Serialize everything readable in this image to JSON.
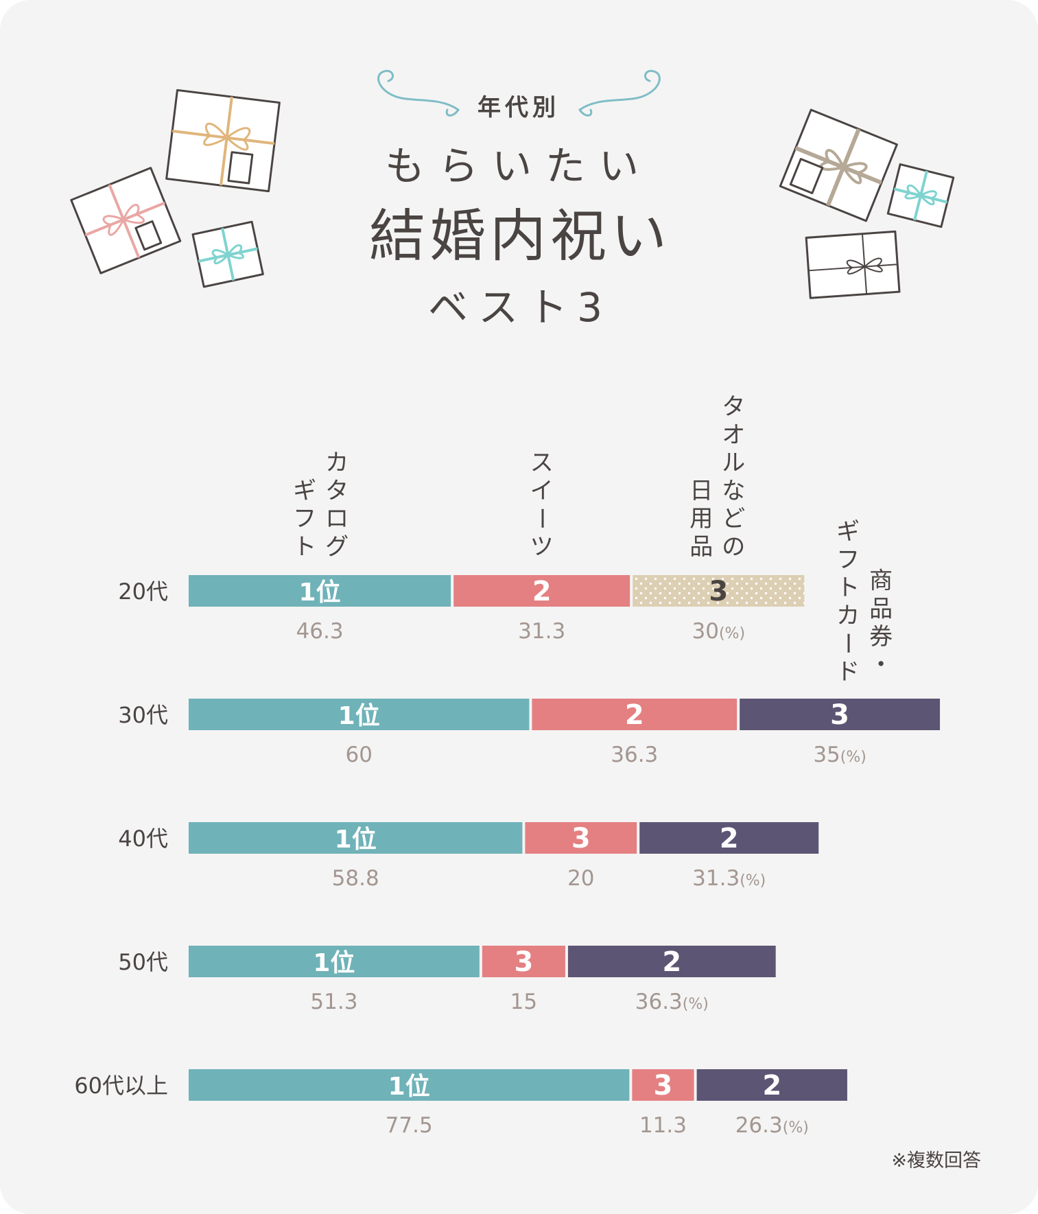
{
  "header": {
    "tag": "年代別",
    "line1": "もらいたい",
    "line2": "結婚内祝い",
    "line3": "ベスト3"
  },
  "colors": {
    "catalog": "#6fb2b8",
    "sweets": "#e48082",
    "towel": "#dccfb3",
    "giftcard": "#5d5574",
    "accent": "#7fbdc6"
  },
  "chart_data": {
    "type": "bar",
    "orientation": "horizontal-stacked",
    "unit": "(%)",
    "categories": [
      "20代",
      "30代",
      "40代",
      "50代",
      "60代以上"
    ],
    "category_labels": {
      "catalog": [
        "カタログ",
        "ギフト"
      ],
      "sweets": [
        "スイーツ"
      ],
      "towel": [
        "タオルなどの",
        "日用品"
      ],
      "giftcard": [
        "商品券・",
        "ギフトカード"
      ]
    },
    "rows": [
      {
        "age": "20代",
        "segments": [
          {
            "key": "catalog",
            "rank": "1位",
            "value": 46.3,
            "value_text": "46.3"
          },
          {
            "key": "sweets",
            "rank": "2",
            "value": 31.3,
            "value_text": "31.3"
          },
          {
            "key": "towel",
            "rank": "3",
            "value": 30,
            "value_text": "30"
          }
        ]
      },
      {
        "age": "30代",
        "segments": [
          {
            "key": "catalog",
            "rank": "1位",
            "value": 60,
            "value_text": "60"
          },
          {
            "key": "sweets",
            "rank": "2",
            "value": 36.3,
            "value_text": "36.3"
          },
          {
            "key": "giftcard",
            "rank": "3",
            "value": 35,
            "value_text": "35"
          }
        ]
      },
      {
        "age": "40代",
        "segments": [
          {
            "key": "catalog",
            "rank": "1位",
            "value": 58.8,
            "value_text": "58.8"
          },
          {
            "key": "sweets",
            "rank": "3",
            "value": 20,
            "value_text": "20"
          },
          {
            "key": "giftcard",
            "rank": "2",
            "value": 31.3,
            "value_text": "31.3"
          }
        ]
      },
      {
        "age": "50代",
        "segments": [
          {
            "key": "catalog",
            "rank": "1位",
            "value": 51.3,
            "value_text": "51.3"
          },
          {
            "key": "sweets",
            "rank": "3",
            "value": 15,
            "value_text": "15"
          },
          {
            "key": "giftcard",
            "rank": "2",
            "value": 36.3,
            "value_text": "36.3"
          }
        ]
      },
      {
        "age": "60代以上",
        "segments": [
          {
            "key": "catalog",
            "rank": "1位",
            "value": 77.5,
            "value_text": "77.5"
          },
          {
            "key": "sweets",
            "rank": "3",
            "value": 11.3,
            "value_text": "11.3"
          },
          {
            "key": "giftcard",
            "rank": "2",
            "value": 26.3,
            "value_text": "26.3"
          }
        ]
      }
    ],
    "footnote": "※複数回答"
  }
}
